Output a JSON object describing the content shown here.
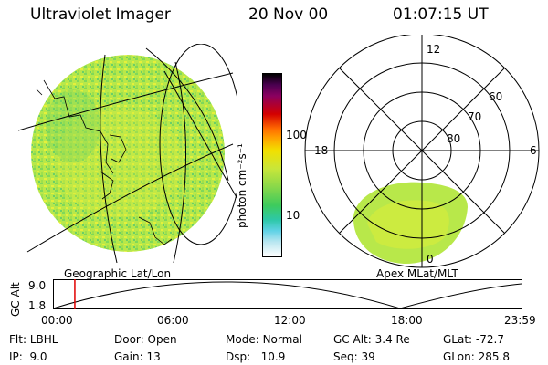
{
  "header": {
    "title": "Ultraviolet Imager",
    "date": "20 Nov 00",
    "time": "01:07:15 UT"
  },
  "colorbar": {
    "unit_label": "photon cm⁻²s⁻¹",
    "ticks": [
      "100",
      "10"
    ]
  },
  "polar_plot": {
    "mlt_labels": [
      "12",
      "18",
      "6",
      "0"
    ],
    "lat_labels": [
      "60",
      "70",
      "80"
    ],
    "caption": "Apex MLat/MLT"
  },
  "geo_plot": {
    "caption": "Geographic Lat/Lon"
  },
  "altitude_plot": {
    "axis_label": "GC Alt",
    "y_ticks": [
      "9.0",
      "1.8"
    ],
    "time_ticks": [
      "00:00",
      "06:00",
      "12:00",
      "18:00",
      "23:59"
    ],
    "current_time_hours": 1.12
  },
  "info": {
    "flt": {
      "key": "Flt:",
      "value": "LBHL"
    },
    "ip": {
      "key": "IP:",
      "value": "9.0"
    },
    "door": {
      "key": "Door:",
      "value": "Open"
    },
    "gain": {
      "key": "Gain:",
      "value": "13"
    },
    "mode": {
      "key": "Mode:",
      "value": "Normal"
    },
    "dsp": {
      "key": "Dsp:",
      "value": "10.9"
    },
    "gc_alt": {
      "key": "GC Alt:",
      "value": "3.4 Re"
    },
    "seq": {
      "key": "Seq:",
      "value": "39"
    },
    "glat": {
      "key": "GLat:",
      "value": "-72.7"
    },
    "glon": {
      "key": "GLon:",
      "value": "285.8"
    }
  },
  "colors": {
    "aurora_green": "#9be04a",
    "aurora_yellow": "#d8ec3a",
    "marker_red": "#e00000"
  }
}
